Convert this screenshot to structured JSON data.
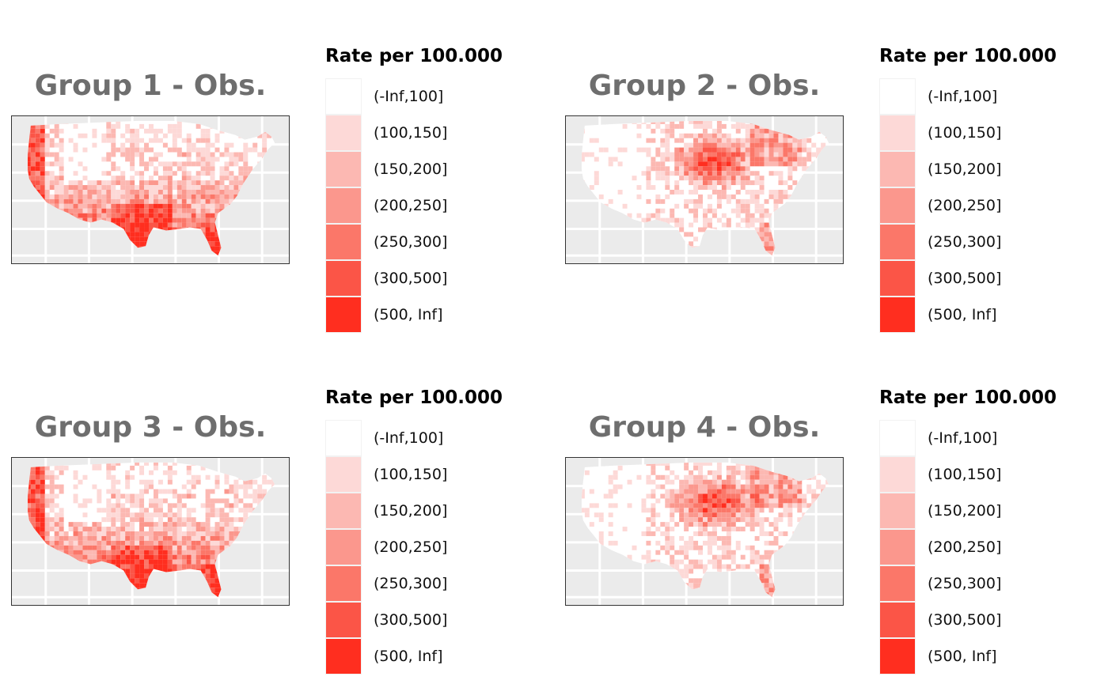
{
  "legend": {
    "title": "Rate per 100.000",
    "items": [
      {
        "label": "(-Inf,100]",
        "color": "#ffffff"
      },
      {
        "label": "(100,150]",
        "color": "#fdd9d7"
      },
      {
        "label": "(150,200]",
        "color": "#fcb8b2"
      },
      {
        "label": "(200,250]",
        "color": "#fb978d"
      },
      {
        "label": "(250,300]",
        "color": "#fb7769"
      },
      {
        "label": "(300,500]",
        "color": "#fb5547"
      },
      {
        "label": "(500, Inf]",
        "color": "#ff2e1f"
      }
    ]
  },
  "panels": [
    {
      "title": "Group 1 - Obs.",
      "pattern": "south-west"
    },
    {
      "title": "Group 2 - Obs.",
      "pattern": "midwest"
    },
    {
      "title": "Group 3 - Obs.",
      "pattern": "south-west"
    },
    {
      "title": "Group 4 - Obs.",
      "pattern": "midwest"
    }
  ],
  "colors": {
    "background": "#ebebeb",
    "grid": "#ffffff",
    "title": "#6e6e6e"
  }
}
